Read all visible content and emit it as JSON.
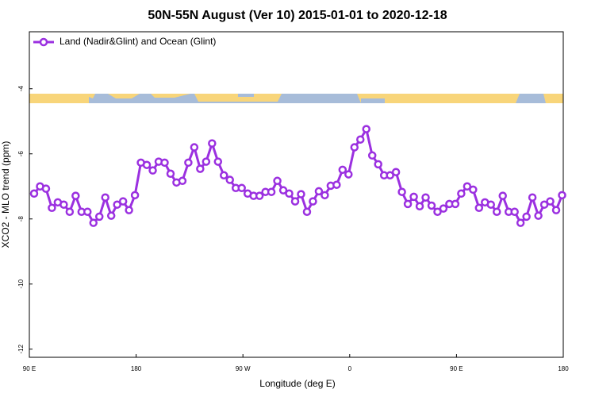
{
  "chart_data": {
    "type": "line",
    "title": "50N-55N August (Ver 10)   2015-01-01 to 2020-12-18",
    "xlabel": "Longitude (deg E)",
    "ylabel": "XCO2 - MLO trend (ppm)",
    "xlim": [
      90,
      540
    ],
    "xticks": [
      {
        "value": 90,
        "label": "90 E"
      },
      180,
      {
        "value": 270,
        "label": "90 W"
      },
      {
        "value": 360,
        "label": "0"
      },
      {
        "value": 450,
        "label": "90 E"
      },
      {
        "value": 540,
        "label": "180"
      }
    ],
    "ylim": [
      -12.25,
      -2.25
    ],
    "yticks": [
      -4,
      -6,
      -8,
      -10,
      -12
    ],
    "legend": "upper left",
    "x": [
      94,
      99,
      104,
      109,
      114,
      119,
      124,
      129,
      134,
      139,
      144,
      149,
      154,
      159,
      164,
      169,
      174,
      179,
      184,
      189,
      194,
      199,
      204,
      209,
      214,
      219,
      224,
      229,
      234,
      239,
      244,
      249,
      254,
      259,
      264,
      269,
      274,
      279,
      284,
      289,
      294,
      299,
      304,
      309,
      314,
      319,
      324,
      329,
      334,
      339,
      344,
      349,
      354,
      359,
      364,
      369,
      374,
      379,
      384,
      389,
      394,
      399,
      404,
      409,
      414,
      419,
      424,
      429,
      434,
      439,
      444,
      449,
      454,
      459,
      464,
      469,
      474,
      479,
      484,
      489,
      494,
      499,
      504,
      509,
      514,
      519,
      524,
      529,
      534,
      539
    ],
    "series": [
      {
        "name": "Land (Nadir&Glint) and Ocean (Glint)",
        "color": "#9b30e0",
        "values": [
          -7.22,
          -7.0,
          -7.07,
          -7.66,
          -7.49,
          -7.56,
          -7.78,
          -7.29,
          -7.78,
          -7.78,
          -8.12,
          -7.93,
          -7.34,
          -7.9,
          -7.56,
          -7.46,
          -7.73,
          -7.27,
          -6.27,
          -6.34,
          -6.51,
          -6.24,
          -6.27,
          -6.61,
          -6.88,
          -6.83,
          -6.27,
          -5.8,
          -6.46,
          -6.24,
          -5.68,
          -6.24,
          -6.66,
          -6.8,
          -7.05,
          -7.05,
          -7.22,
          -7.29,
          -7.29,
          -7.17,
          -7.17,
          -6.83,
          -7.12,
          -7.22,
          -7.46,
          -7.24,
          -7.78,
          -7.46,
          -7.15,
          -7.27,
          -6.98,
          -6.95,
          -6.49,
          -6.63,
          -5.8,
          -5.56,
          -5.24,
          -6.05,
          -6.32,
          -6.66,
          -6.66,
          -6.56,
          -7.17,
          -7.54,
          -7.32,
          -7.61,
          -7.34,
          -7.59,
          -7.78,
          -7.68,
          -7.54,
          -7.54,
          -7.22,
          -7.0,
          -7.1,
          -7.66,
          -7.49,
          -7.56,
          -7.78,
          -7.29,
          -7.78,
          -7.78,
          -8.12,
          -7.93,
          -7.34,
          -7.9,
          -7.56,
          -7.46,
          -7.73,
          -7.27
        ]
      }
    ]
  }
}
